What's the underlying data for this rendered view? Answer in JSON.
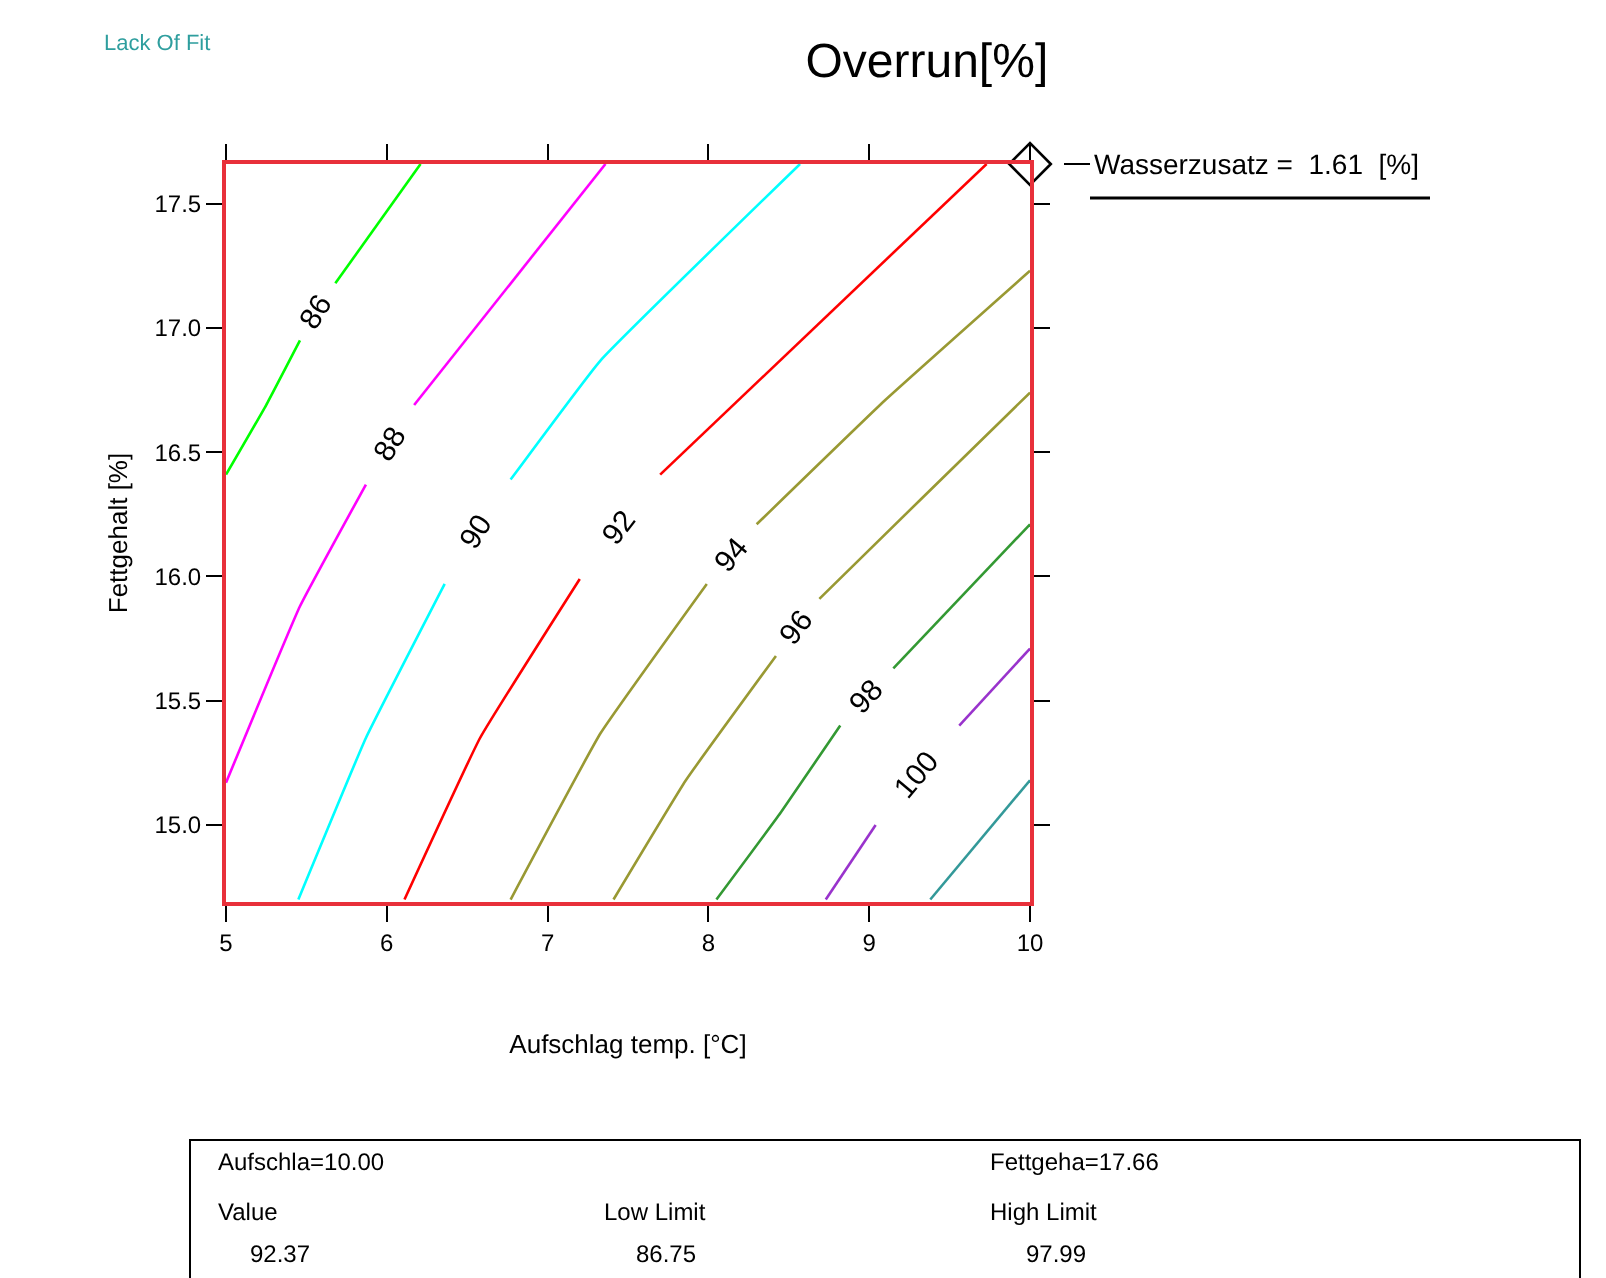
{
  "chart_data": {
    "type": "line",
    "title": "Overrun[%]",
    "xlabel": "Aufschlag temp. [°C]",
    "ylabel": "Fettgehalt [%]",
    "xlim": [
      5,
      10
    ],
    "ylim": [
      14.69,
      17.66
    ],
    "xticks": [
      5,
      6,
      7,
      8,
      9,
      10
    ],
    "yticks": [
      {
        "value": 15,
        "label": "15.0"
      },
      {
        "value": 15.5,
        "label": "15.5"
      },
      {
        "value": 16,
        "label": "16.0"
      },
      {
        "value": 16.5,
        "label": "16.5"
      },
      {
        "value": 17,
        "label": "17.0"
      },
      {
        "value": 17.5,
        "label": "17.5"
      }
    ],
    "legend": false,
    "marker": "none",
    "line_style": "solid",
    "series": [
      {
        "name": "86",
        "color": "#00ff00",
        "x": [
          5,
          5.25,
          5.46,
          null,
          5.68,
          6.21
        ],
        "values": [
          16.41,
          16.69,
          16.95,
          null,
          17.18,
          17.66
        ]
      },
      {
        "name": "88",
        "color": "#ff00ff",
        "x": [
          5,
          5.46,
          5.87,
          null,
          6.17,
          7.36
        ],
        "values": [
          15.17,
          15.88,
          16.37,
          null,
          16.69,
          17.66
        ]
      },
      {
        "name": "90",
        "color": "#00ffff",
        "x": [
          5.45,
          5.87,
          6.36,
          null,
          6.77,
          7.33,
          8.57
        ],
        "values": [
          14.7,
          15.35,
          15.97,
          null,
          16.39,
          16.87,
          17.66
        ]
      },
      {
        "name": "92",
        "color": "#ff0000",
        "x": [
          6.11,
          6.58,
          7.2,
          null,
          7.7,
          9.73
        ],
        "values": [
          14.7,
          15.35,
          15.99,
          null,
          16.41,
          17.66
        ]
      },
      {
        "name": "94",
        "color": "#999933",
        "x": [
          6.77,
          7.33,
          7.99,
          null,
          8.3,
          9.1,
          10
        ],
        "values": [
          14.7,
          15.37,
          15.97,
          null,
          16.21,
          16.71,
          17.23
        ]
      },
      {
        "name": "96",
        "color": "#999933",
        "x": [
          7.41,
          7.86,
          8.42,
          null,
          8.69,
          9.32,
          10
        ],
        "values": [
          14.7,
          15.18,
          15.68,
          null,
          15.91,
          16.31,
          16.74
        ]
      },
      {
        "name": "98",
        "color": "#339933",
        "x": [
          8.05,
          8.45,
          8.82,
          null,
          9.15,
          10
        ],
        "values": [
          14.7,
          15.05,
          15.4,
          null,
          15.63,
          16.21
        ]
      },
      {
        "name": "100",
        "color": "#9933cc",
        "x": [
          8.73,
          9.04,
          null,
          9.56,
          10
        ],
        "values": [
          14.7,
          15.0,
          null,
          15.4,
          15.71
        ]
      },
      {
        "color": "#339999",
        "x": [
          9.38,
          10
        ],
        "values": [
          14.7,
          15.18
        ]
      },
      {
        "type": "scatter",
        "marker": "diamond",
        "color": "#000000",
        "x": [
          10
        ],
        "values": [
          17.66
        ]
      }
    ],
    "annotations": [
      "Lack Of Fit",
      "Wasserzusatz =  1.61  [%]",
      "Aufschla=10.00",
      "Fettgeha=17.66",
      "Value",
      "Low Limit",
      "High Limit",
      "92.37",
      "86.75",
      "97.99"
    ]
  }
}
